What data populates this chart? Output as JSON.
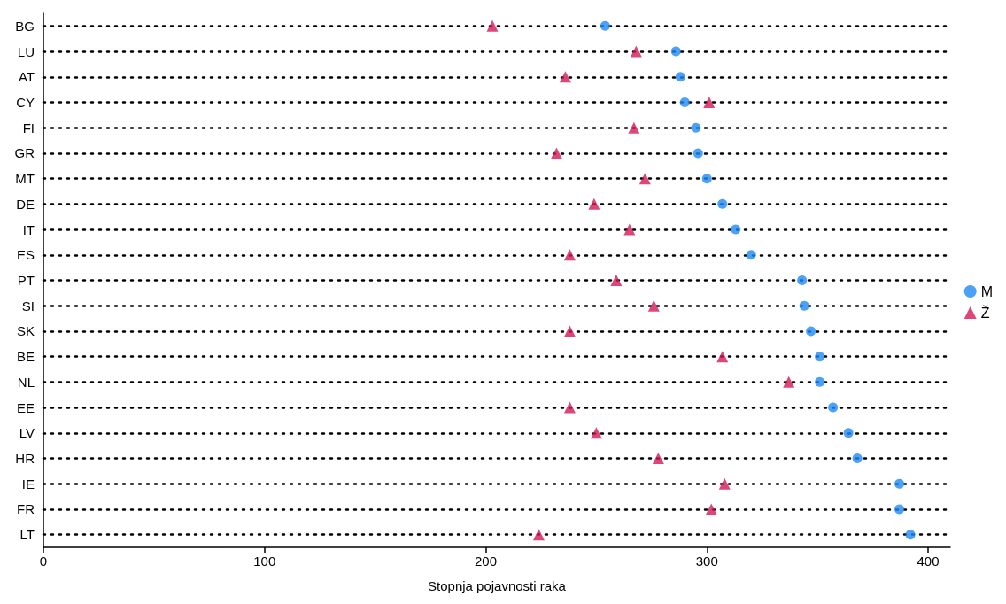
{
  "chart_data": {
    "type": "scatter",
    "orientation": "horizontal",
    "xlabel": "Stopnja pojavnosti raka",
    "categories": [
      "BG",
      "LU",
      "AT",
      "CY",
      "FI",
      "GR",
      "MT",
      "DE",
      "IT",
      "ES",
      "PT",
      "SI",
      "SK",
      "BE",
      "NL",
      "EE",
      "LV",
      "HR",
      "IE",
      "FR",
      "LT"
    ],
    "series": [
      {
        "name": "M",
        "color": "#1e88f5",
        "marker": "circle",
        "values": [
          254,
          286,
          288,
          290,
          295,
          296,
          300,
          307,
          313,
          320,
          343,
          344,
          347,
          351,
          351,
          357,
          364,
          368,
          387,
          387,
          392
        ]
      },
      {
        "name": "Ž",
        "color": "#d3195a",
        "marker": "triangle",
        "values": [
          203,
          268,
          236,
          301,
          267,
          232,
          272,
          249,
          265,
          238,
          259,
          276,
          238,
          307,
          337,
          238,
          250,
          278,
          308,
          302,
          224
        ]
      }
    ],
    "xlim": [
      0,
      410
    ],
    "xticks": [
      0,
      100,
      200,
      300,
      400
    ],
    "grid": "y",
    "legend": "right"
  }
}
